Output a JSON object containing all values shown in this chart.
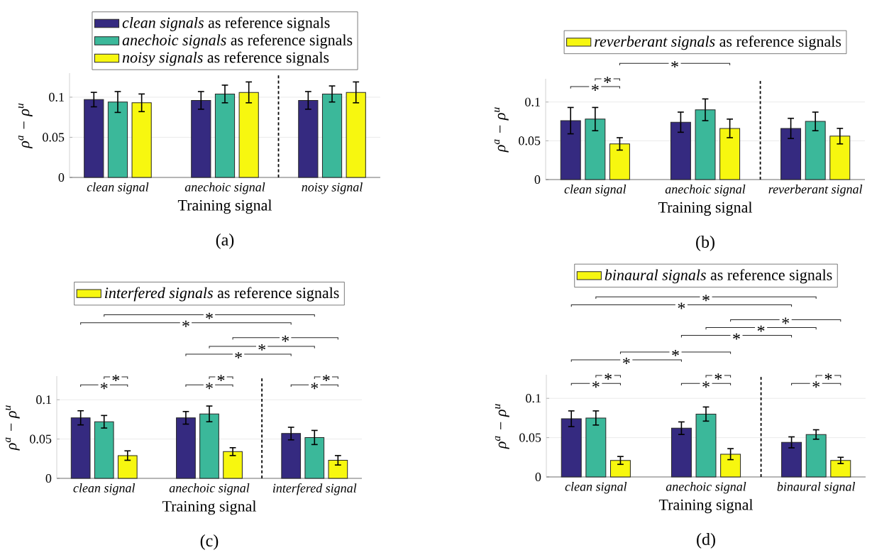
{
  "chart_data": [
    {
      "type": "bar",
      "categories": [
        "clean signal",
        "anechoic signal",
        "noisy signal"
      ],
      "xlabel": "Training signal",
      "ylabel": "ρ$^{a}$ − ρ$^{u}$",
      "ylim": [
        0,
        0.13
      ],
      "yticks": [
        0,
        0.05,
        0.1
      ],
      "grid": "y",
      "legend": "top",
      "series": [
        {
          "name": "*clean signals* as reference signals",
          "color": "#352a80",
          "values": [
            0.097,
            0.096,
            0.096
          ],
          "errors": [
            0.009,
            0.011,
            0.011
          ]
        },
        {
          "name": "*anechoic signals* as reference signals",
          "color": "#3bb89a",
          "values": [
            0.094,
            0.104,
            0.104
          ],
          "errors": [
            0.013,
            0.011,
            0.01
          ]
        },
        {
          "name": "*noisy signals* as reference signals",
          "color": "#f7f70f",
          "values": [
            0.093,
            0.106,
            0.106
          ],
          "errors": [
            0.011,
            0.013,
            0.013
          ]
        }
      ],
      "annotations": [
        "(a)"
      ]
    },
    {
      "type": "bar",
      "categories": [
        "clean signal",
        "anechoic signal",
        "reverberant signal"
      ],
      "xlabel": "Training signal",
      "ylabel": "ρ$^{a}$ − ρ$^{u}$",
      "ylim": [
        0,
        0.13
      ],
      "yticks": [
        0,
        0.05,
        0.1
      ],
      "grid": "y",
      "legend": "top",
      "series": [
        {
          "color": "#352a80",
          "values": [
            0.076,
            0.074,
            0.066
          ],
          "errors": [
            0.017,
            0.013,
            0.013
          ]
        },
        {
          "color": "#3bb89a",
          "values": [
            0.078,
            0.09,
            0.075
          ],
          "errors": [
            0.015,
            0.014,
            0.012
          ]
        },
        {
          "name": "*reverberant signals* as reference signals",
          "color": "#f7f70f",
          "values": [
            0.046,
            0.066,
            0.056
          ],
          "errors": [
            0.008,
            0.012,
            0.01
          ]
        }
      ],
      "annotations": [
        "*",
        "*",
        "*",
        "(b)"
      ]
    },
    {
      "type": "bar",
      "categories": [
        "clean signal",
        "anechoic signal",
        "interfered signal"
      ],
      "xlabel": "Training signal",
      "ylabel": "ρ$^{a}$ − ρ$^{u}$",
      "ylim": [
        0,
        0.13
      ],
      "yticks": [
        0,
        0.05,
        0.1
      ],
      "grid": "y",
      "legend": "top",
      "series": [
        {
          "color": "#352a80",
          "values": [
            0.077,
            0.077,
            0.057
          ],
          "errors": [
            0.009,
            0.008,
            0.008
          ]
        },
        {
          "color": "#3bb89a",
          "values": [
            0.072,
            0.082,
            0.052
          ],
          "errors": [
            0.008,
            0.01,
            0.009
          ]
        },
        {
          "name": "*interfered signals* as reference signals",
          "color": "#f7f70f",
          "values": [
            0.029,
            0.034,
            0.023
          ],
          "errors": [
            0.006,
            0.005,
            0.006
          ]
        }
      ],
      "annotations": [
        "*",
        "*",
        "*",
        "*",
        "*",
        "*",
        "*",
        "*",
        "*",
        "*",
        "*",
        "(c)"
      ]
    },
    {
      "type": "bar",
      "categories": [
        "clean signal",
        "anechoic signal",
        "binaural signal"
      ],
      "xlabel": "Training signal",
      "ylabel": "ρ$^{a}$ − ρ$^{u}$",
      "ylim": [
        0,
        0.13
      ],
      "yticks": [
        0,
        0.05,
        0.1
      ],
      "grid": "y",
      "legend": "top",
      "series": [
        {
          "color": "#352a80",
          "values": [
            0.074,
            0.062,
            0.044
          ],
          "errors": [
            0.01,
            0.008,
            0.007
          ]
        },
        {
          "color": "#3bb89a",
          "values": [
            0.075,
            0.08,
            0.054
          ],
          "errors": [
            0.009,
            0.009,
            0.006
          ]
        },
        {
          "name": "*binaural signals* as reference signals",
          "color": "#f7f70f",
          "values": [
            0.021,
            0.029,
            0.021
          ],
          "errors": [
            0.005,
            0.007,
            0.004
          ]
        }
      ],
      "annotations": [
        "*",
        "*",
        "*",
        "*",
        "*",
        "*",
        "*",
        "*",
        "*",
        "*",
        "*",
        "*",
        "*",
        "(d)"
      ]
    }
  ]
}
